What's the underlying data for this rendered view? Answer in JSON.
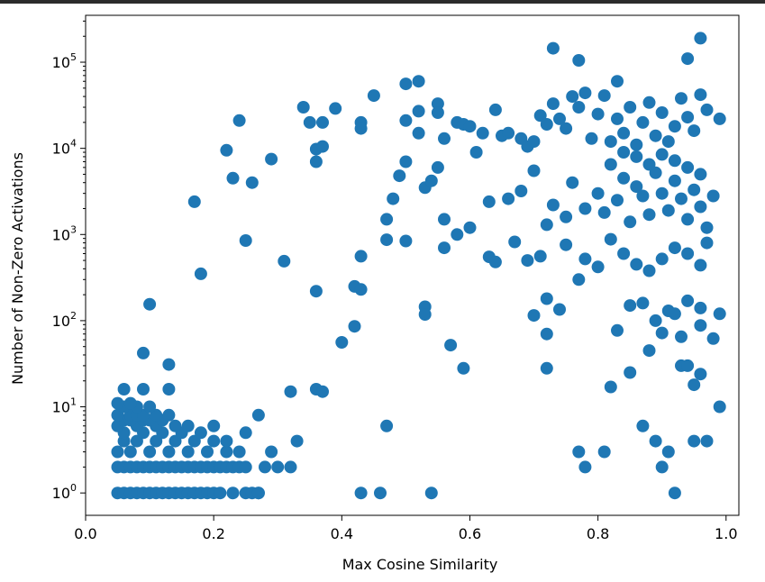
{
  "chart_data": {
    "type": "scatter",
    "title": "",
    "xlabel": "Max Cosine Similarity",
    "ylabel": "Number of Non-Zero Activations",
    "xlim": [
      0.0,
      1.02
    ],
    "ylim": [
      0.55,
      350000
    ],
    "yscale": "log",
    "grid": false,
    "x_ticks": [
      {
        "value": 0.0,
        "label": "0.0"
      },
      {
        "value": 0.2,
        "label": "0.2"
      },
      {
        "value": 0.4,
        "label": "0.4"
      },
      {
        "value": 0.6,
        "label": "0.6"
      },
      {
        "value": 0.8,
        "label": "0.8"
      },
      {
        "value": 1.0,
        "label": "1.0"
      }
    ],
    "y_ticks": [
      {
        "value": 1,
        "base": "10",
        "exp": "0"
      },
      {
        "value": 10,
        "base": "10",
        "exp": "1"
      },
      {
        "value": 100,
        "base": "10",
        "exp": "2"
      },
      {
        "value": 1000,
        "base": "10",
        "exp": "3"
      },
      {
        "value": 10000,
        "base": "10",
        "exp": "4"
      },
      {
        "value": 100000,
        "base": "10",
        "exp": "5"
      }
    ],
    "marker_color": "#1f77b4",
    "points": [
      [
        0.05,
        1
      ],
      [
        0.06,
        1
      ],
      [
        0.07,
        1
      ],
      [
        0.08,
        1
      ],
      [
        0.09,
        1
      ],
      [
        0.1,
        1
      ],
      [
        0.11,
        1
      ],
      [
        0.12,
        1
      ],
      [
        0.13,
        1
      ],
      [
        0.14,
        1
      ],
      [
        0.15,
        1
      ],
      [
        0.16,
        1
      ],
      [
        0.17,
        1
      ],
      [
        0.18,
        1
      ],
      [
        0.19,
        1
      ],
      [
        0.2,
        1
      ],
      [
        0.21,
        1
      ],
      [
        0.23,
        1
      ],
      [
        0.25,
        1
      ],
      [
        0.26,
        1
      ],
      [
        0.27,
        1
      ],
      [
        0.27,
        1
      ],
      [
        0.43,
        1
      ],
      [
        0.46,
        1
      ],
      [
        0.54,
        1
      ],
      [
        0.92,
        1
      ],
      [
        0.05,
        2
      ],
      [
        0.06,
        2
      ],
      [
        0.07,
        2
      ],
      [
        0.08,
        2
      ],
      [
        0.09,
        2
      ],
      [
        0.1,
        2
      ],
      [
        0.11,
        2
      ],
      [
        0.12,
        2
      ],
      [
        0.13,
        2
      ],
      [
        0.14,
        2
      ],
      [
        0.15,
        2
      ],
      [
        0.16,
        2
      ],
      [
        0.17,
        2
      ],
      [
        0.18,
        2
      ],
      [
        0.19,
        2
      ],
      [
        0.2,
        2
      ],
      [
        0.21,
        2
      ],
      [
        0.22,
        2
      ],
      [
        0.23,
        2
      ],
      [
        0.24,
        2
      ],
      [
        0.25,
        2
      ],
      [
        0.28,
        2
      ],
      [
        0.3,
        2
      ],
      [
        0.32,
        2
      ],
      [
        0.78,
        2
      ],
      [
        0.9,
        2
      ],
      [
        0.05,
        3
      ],
      [
        0.07,
        3
      ],
      [
        0.1,
        3
      ],
      [
        0.13,
        3
      ],
      [
        0.16,
        3
      ],
      [
        0.19,
        3
      ],
      [
        0.22,
        3
      ],
      [
        0.24,
        3
      ],
      [
        0.29,
        3
      ],
      [
        0.77,
        3
      ],
      [
        0.81,
        3
      ],
      [
        0.91,
        3
      ],
      [
        0.06,
        4
      ],
      [
        0.08,
        4
      ],
      [
        0.11,
        4
      ],
      [
        0.14,
        4
      ],
      [
        0.17,
        4
      ],
      [
        0.2,
        4
      ],
      [
        0.22,
        4
      ],
      [
        0.33,
        4
      ],
      [
        0.89,
        4
      ],
      [
        0.95,
        4
      ],
      [
        0.97,
        4
      ],
      [
        0.06,
        5
      ],
      [
        0.09,
        5
      ],
      [
        0.12,
        5
      ],
      [
        0.15,
        5
      ],
      [
        0.18,
        5
      ],
      [
        0.25,
        5
      ],
      [
        0.05,
        6
      ],
      [
        0.08,
        6
      ],
      [
        0.11,
        6
      ],
      [
        0.14,
        6
      ],
      [
        0.16,
        6
      ],
      [
        0.2,
        6
      ],
      [
        0.47,
        6
      ],
      [
        0.87,
        6
      ],
      [
        0.06,
        7
      ],
      [
        0.07,
        7
      ],
      [
        0.09,
        7
      ],
      [
        0.1,
        7
      ],
      [
        0.12,
        7
      ],
      [
        0.05,
        8
      ],
      [
        0.07,
        8
      ],
      [
        0.08,
        8
      ],
      [
        0.09,
        8
      ],
      [
        0.11,
        8
      ],
      [
        0.13,
        8
      ],
      [
        0.27,
        8
      ],
      [
        0.06,
        10
      ],
      [
        0.08,
        10
      ],
      [
        0.1,
        10
      ],
      [
        0.05,
        11
      ],
      [
        0.07,
        11
      ],
      [
        0.99,
        10
      ],
      [
        0.06,
        16
      ],
      [
        0.09,
        16
      ],
      [
        0.13,
        16
      ],
      [
        0.32,
        15
      ],
      [
        0.36,
        16
      ],
      [
        0.37,
        15
      ],
      [
        0.82,
        17
      ],
      [
        0.95,
        18
      ],
      [
        0.09,
        42
      ],
      [
        0.13,
        31
      ],
      [
        0.59,
        28
      ],
      [
        0.72,
        28
      ],
      [
        0.85,
        25
      ],
      [
        0.93,
        30
      ],
      [
        0.94,
        30
      ],
      [
        0.96,
        24
      ],
      [
        0.1,
        155
      ],
      [
        0.42,
        86
      ],
      [
        0.4,
        56
      ],
      [
        0.57,
        52
      ],
      [
        0.72,
        70
      ],
      [
        0.83,
        77
      ],
      [
        0.88,
        45
      ],
      [
        0.9,
        72
      ],
      [
        0.93,
        65
      ],
      [
        0.96,
        88
      ],
      [
        0.98,
        62
      ],
      [
        0.18,
        350
      ],
      [
        0.31,
        490
      ],
      [
        0.36,
        220
      ],
      [
        0.42,
        250
      ],
      [
        0.43,
        230
      ],
      [
        0.53,
        145
      ],
      [
        0.53,
        118
      ],
      [
        0.7,
        115
      ],
      [
        0.72,
        180
      ],
      [
        0.74,
        135
      ],
      [
        0.85,
        150
      ],
      [
        0.87,
        160
      ],
      [
        0.89,
        100
      ],
      [
        0.91,
        130
      ],
      [
        0.92,
        120
      ],
      [
        0.94,
        170
      ],
      [
        0.96,
        140
      ],
      [
        0.99,
        120
      ],
      [
        0.25,
        850
      ],
      [
        0.43,
        560
      ],
      [
        0.47,
        870
      ],
      [
        0.5,
        840
      ],
      [
        0.56,
        700
      ],
      [
        0.58,
        1000
      ],
      [
        0.63,
        550
      ],
      [
        0.64,
        480
      ],
      [
        0.67,
        820
      ],
      [
        0.69,
        500
      ],
      [
        0.71,
        560
      ],
      [
        0.75,
        760
      ],
      [
        0.77,
        300
      ],
      [
        0.78,
        520
      ],
      [
        0.8,
        420
      ],
      [
        0.82,
        880
      ],
      [
        0.84,
        600
      ],
      [
        0.86,
        450
      ],
      [
        0.88,
        380
      ],
      [
        0.9,
        520
      ],
      [
        0.92,
        700
      ],
      [
        0.94,
        600
      ],
      [
        0.96,
        440
      ],
      [
        0.97,
        800
      ],
      [
        0.17,
        2400
      ],
      [
        0.22,
        9500
      ],
      [
        0.23,
        4500
      ],
      [
        0.26,
        4000
      ],
      [
        0.29,
        7500
      ],
      [
        0.36,
        7000
      ],
      [
        0.36,
        9800
      ],
      [
        0.47,
        1500
      ],
      [
        0.48,
        2600
      ],
      [
        0.49,
        4800
      ],
      [
        0.5,
        7000
      ],
      [
        0.53,
        3500
      ],
      [
        0.54,
        4200
      ],
      [
        0.55,
        6000
      ],
      [
        0.56,
        1500
      ],
      [
        0.6,
        1200
      ],
      [
        0.61,
        9000
      ],
      [
        0.63,
        2400
      ],
      [
        0.66,
        2600
      ],
      [
        0.68,
        3200
      ],
      [
        0.7,
        5500
      ],
      [
        0.72,
        1300
      ],
      [
        0.73,
        2200
      ],
      [
        0.75,
        1600
      ],
      [
        0.76,
        4000
      ],
      [
        0.78,
        2000
      ],
      [
        0.8,
        3000
      ],
      [
        0.81,
        1800
      ],
      [
        0.82,
        6500
      ],
      [
        0.83,
        2500
      ],
      [
        0.84,
        4500
      ],
      [
        0.85,
        1400
      ],
      [
        0.86,
        3600
      ],
      [
        0.87,
        2800
      ],
      [
        0.88,
        1700
      ],
      [
        0.89,
        5200
      ],
      [
        0.9,
        3000
      ],
      [
        0.91,
        1900
      ],
      [
        0.92,
        4200
      ],
      [
        0.93,
        2600
      ],
      [
        0.94,
        1500
      ],
      [
        0.95,
        3300
      ],
      [
        0.96,
        2100
      ],
      [
        0.97,
        1200
      ],
      [
        0.98,
        2800
      ],
      [
        0.84,
        9000
      ],
      [
        0.86,
        8000
      ],
      [
        0.88,
        6500
      ],
      [
        0.9,
        8500
      ],
      [
        0.92,
        7200
      ],
      [
        0.94,
        6000
      ],
      [
        0.96,
        5000
      ],
      [
        0.24,
        21000
      ],
      [
        0.34,
        30000
      ],
      [
        0.35,
        20000
      ],
      [
        0.37,
        20000
      ],
      [
        0.37,
        10500
      ],
      [
        0.39,
        29000
      ],
      [
        0.43,
        20000
      ],
      [
        0.43,
        17000
      ],
      [
        0.45,
        41000
      ],
      [
        0.5,
        56000
      ],
      [
        0.5,
        21000
      ],
      [
        0.52,
        60000
      ],
      [
        0.52,
        27000
      ],
      [
        0.52,
        15000
      ],
      [
        0.55,
        33000
      ],
      [
        0.55,
        26000
      ],
      [
        0.56,
        13000
      ],
      [
        0.58,
        20000
      ],
      [
        0.59,
        19000
      ],
      [
        0.6,
        18000
      ],
      [
        0.62,
        15000
      ],
      [
        0.64,
        28000
      ],
      [
        0.65,
        14000
      ],
      [
        0.66,
        15000
      ],
      [
        0.68,
        13000
      ],
      [
        0.69,
        10500
      ],
      [
        0.7,
        12000
      ],
      [
        0.71,
        24000
      ],
      [
        0.72,
        19000
      ],
      [
        0.73,
        33000
      ],
      [
        0.74,
        22000
      ],
      [
        0.75,
        17000
      ],
      [
        0.76,
        40000
      ],
      [
        0.77,
        30000
      ],
      [
        0.78,
        44000
      ],
      [
        0.79,
        13000
      ],
      [
        0.8,
        25000
      ],
      [
        0.81,
        41000
      ],
      [
        0.82,
        12000
      ],
      [
        0.83,
        22000
      ],
      [
        0.84,
        15000
      ],
      [
        0.85,
        30000
      ],
      [
        0.86,
        11000
      ],
      [
        0.87,
        20000
      ],
      [
        0.88,
        34000
      ],
      [
        0.89,
        14000
      ],
      [
        0.9,
        26000
      ],
      [
        0.91,
        12000
      ],
      [
        0.92,
        18000
      ],
      [
        0.93,
        38000
      ],
      [
        0.94,
        23000
      ],
      [
        0.95,
        16000
      ],
      [
        0.96,
        42000
      ],
      [
        0.97,
        28000
      ],
      [
        0.99,
        22000
      ],
      [
        0.73,
        145000
      ],
      [
        0.77,
        105000
      ],
      [
        0.83,
        60000
      ],
      [
        0.94,
        110000
      ],
      [
        0.96,
        190000
      ]
    ]
  }
}
